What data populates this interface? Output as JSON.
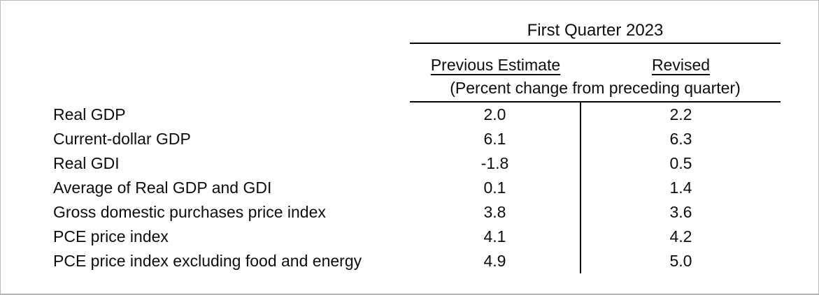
{
  "table": {
    "title": "First Quarter 2023",
    "columns": [
      "Previous Estimate",
      "Revised"
    ],
    "unit_note": "(Percent change from preceding quarter)",
    "rows": [
      {
        "label": "Real GDP",
        "previous": "2.0",
        "revised": "2.2"
      },
      {
        "label": "Current-dollar GDP",
        "previous": "6.1",
        "revised": "6.3"
      },
      {
        "label": "Real GDI",
        "previous": "-1.8",
        "revised": "0.5"
      },
      {
        "label": "Average of Real GDP and GDI",
        "previous": "0.1",
        "revised": "1.4"
      },
      {
        "label": "Gross domestic purchases price index",
        "previous": "3.8",
        "revised": "3.6"
      },
      {
        "label": "PCE price index",
        "previous": "4.1",
        "revised": "4.2"
      },
      {
        "label": "PCE price index excluding food and energy",
        "previous": "4.9",
        "revised": "5.0"
      }
    ]
  },
  "chart_data": {
    "type": "table",
    "title": "First Quarter 2023",
    "subtitle": "(Percent change from preceding quarter)",
    "columns": [
      "Previous Estimate",
      "Revised"
    ],
    "categories": [
      "Real GDP",
      "Current-dollar GDP",
      "Real GDI",
      "Average of Real GDP and GDI",
      "Gross domestic purchases price index",
      "PCE price index",
      "PCE price index excluding food and energy"
    ],
    "series": [
      {
        "name": "Previous Estimate",
        "values": [
          2.0,
          6.1,
          -1.8,
          0.1,
          3.8,
          4.1,
          4.9
        ]
      },
      {
        "name": "Revised",
        "values": [
          2.2,
          6.3,
          0.5,
          1.4,
          3.6,
          4.2,
          5.0
        ]
      }
    ]
  },
  "colors": {
    "text": "#0d0d0d",
    "table_rule": "#000000",
    "frame_border": "#b9b9b9",
    "background": "#ffffff"
  }
}
